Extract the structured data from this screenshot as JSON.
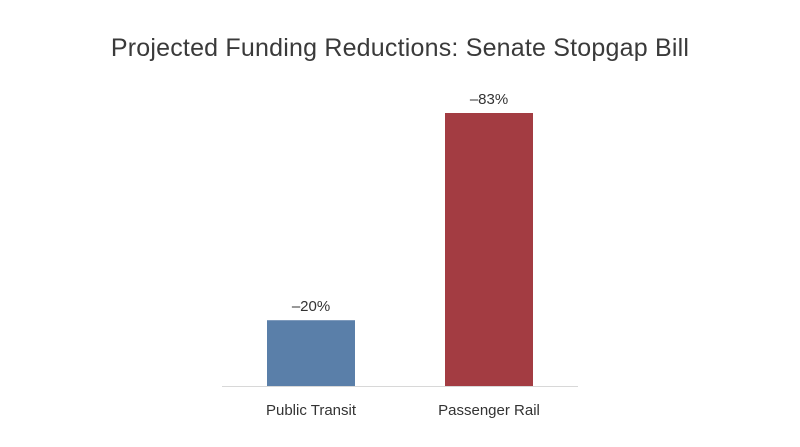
{
  "chart_data": {
    "type": "bar",
    "title": "Projected Funding Reductions: Senate Stopgap Bill",
    "categories": [
      "Public Transit",
      "Passenger Rail"
    ],
    "values": [
      -20,
      -83
    ],
    "data_labels": [
      "–20%",
      "–83%"
    ],
    "colors": [
      "#5a7fa9",
      "#a33c42"
    ],
    "axis_color": "#d8d8d8",
    "xlabel": "",
    "ylabel": "",
    "ylim": [
      0,
      -83
    ],
    "bars_grow_upward_for_magnitude": true,
    "grid": false,
    "legend": "none"
  }
}
